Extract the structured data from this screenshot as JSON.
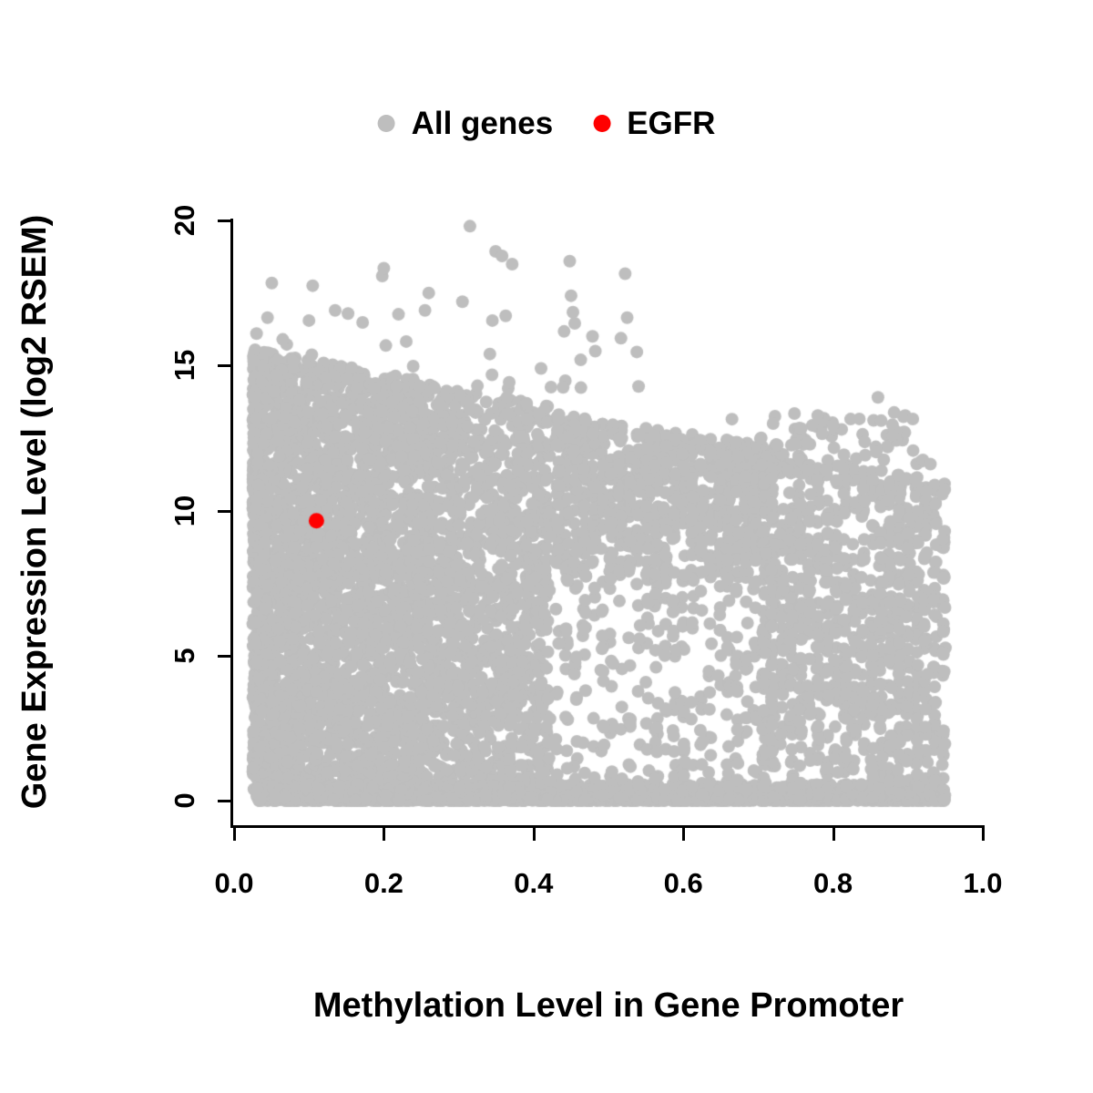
{
  "figure": {
    "background": "#ffffff"
  },
  "legend": {
    "position": "top-center",
    "items": [
      {
        "label": "All genes",
        "color": "#bebebe"
      },
      {
        "label": "EGFR",
        "color": "#ff0000"
      }
    ]
  },
  "axes": {
    "x": {
      "label": "Methylation Level in Gene Promoter",
      "tick_labels": [
        "0.0",
        "0.2",
        "0.4",
        "0.6",
        "0.8",
        "1.0"
      ],
      "tick_values": [
        0,
        0.2,
        0.4,
        0.6,
        0.8,
        1.0
      ],
      "range": [
        0,
        1
      ]
    },
    "y": {
      "label": "Gene Expression Level (log2 RSEM)",
      "tick_labels": [
        "0",
        "5",
        "10",
        "15",
        "20"
      ],
      "tick_values": [
        0,
        5,
        10,
        15,
        20
      ],
      "range": [
        0,
        20
      ]
    }
  },
  "chart_data": {
    "type": "scatter",
    "title": "",
    "xlabel": "Methylation Level in Gene Promoter",
    "ylabel": "Gene Expression Level (log2 RSEM)",
    "xlim": [
      0,
      1
    ],
    "ylim": [
      0,
      20
    ],
    "x_ticks": [
      0,
      0.2,
      0.4,
      0.6,
      0.8,
      1.0
    ],
    "y_ticks": [
      0,
      5,
      10,
      15,
      20
    ],
    "grid": false,
    "legend_position": "top-center",
    "series": [
      {
        "name": "All genes",
        "color": "#bebebe",
        "marker": "filled-circle",
        "marker_radius_px": 7,
        "n_points_estimated": 9000,
        "distribution_note": "Very dense solid cloud at methylation 0.02-0.42 spanning expression 0-15.5; sparser streaky cloud at methylation 0.42-0.95 with maximum expression declining from ~13 to ~11; dense baseline of points at expression ~0 across full methylation range; scattered high-expression outliers up to ~19.8 at low methylation.",
        "generator": {
          "seed": 42,
          "components": [
            {
              "name": "dense-low-methylation-block",
              "n": 3900,
              "x": {
                "min": 0.025,
                "max": 0.42,
                "pow": 1.35
              },
              "y": {
                "envelope_at_xmin": 15.6,
                "envelope_slope": -5.0,
                "pow": 1.0,
                "band_low": 0
              }
            },
            {
              "name": "baseline-near-zero",
              "n": 1600,
              "x": {
                "min": 0.03,
                "max": 0.95,
                "pow": 1.05
              },
              "y": {
                "min": 0,
                "max": 0.55,
                "pow": 2.4
              }
            },
            {
              "name": "mid-methylation-top-band",
              "n": 750,
              "x": {
                "min": 0.42,
                "max": 0.72,
                "pow": 1.0,
                "quantize": 0.012
              },
              "y": {
                "envelope_at_xmin": 13.4,
                "envelope_slope": -4.0,
                "pow": 0.8,
                "band_low": 0.58
              }
            },
            {
              "name": "mid-methylation-sparse-fill",
              "n": 480,
              "x": {
                "min": 0.42,
                "max": 0.72,
                "pow": 1.0,
                "quantize": 0.012
              },
              "y": {
                "envelope_at_xmin": 13.0,
                "envelope_slope": -4.0,
                "pow": 1.15,
                "band_low": 0
              }
            },
            {
              "name": "high-methylation-cloud",
              "n": 1050,
              "x": {
                "min": 0.7,
                "max": 0.95,
                "pow": 0.95,
                "quantize": 0.012
              },
              "y": {
                "envelope_at_xmin": 12.2,
                "envelope_slope": -5.0,
                "pow": 0.9,
                "band_low": 0
              }
            },
            {
              "name": "right-upper-sparse",
              "n": 70,
              "x": {
                "min": 0.7,
                "max": 0.92,
                "pow": 1.0
              },
              "y": {
                "min": 11.3,
                "max": 13.4,
                "pow": 1.0
              }
            },
            {
              "name": "upper-outliers",
              "n": 45,
              "x": {
                "min": 0.04,
                "max": 0.55,
                "pow": 1.0
              },
              "y": {
                "min": 14.2,
                "max": 19.5,
                "pow": 2.2
              }
            }
          ]
        },
        "notable_points": [
          [
            0.315,
            19.8
          ],
          [
            0.2,
            18.35
          ],
          [
            0.105,
            17.75
          ],
          [
            0.26,
            17.5
          ],
          [
            0.305,
            17.2
          ],
          [
            0.135,
            16.9
          ],
          [
            0.1,
            16.55
          ],
          [
            0.345,
            16.55
          ],
          [
            0.255,
            16.9
          ],
          [
            0.455,
            16.45
          ],
          [
            0.525,
            16.65
          ],
          [
            0.03,
            16.1
          ],
          [
            0.065,
            15.9
          ],
          [
            0.41,
            14.9
          ],
          [
            0.86,
            13.9
          ],
          [
            0.665,
            13.15
          ],
          [
            0.72,
            13.0
          ],
          [
            0.8,
            12.95
          ],
          [
            0.88,
            12.6
          ],
          [
            0.93,
            11.6
          ]
        ]
      },
      {
        "name": "EGFR",
        "color": "#ff0000",
        "marker": "filled-circle",
        "marker_radius_px": 8.5,
        "points": [
          [
            0.11,
            9.65
          ]
        ]
      }
    ]
  }
}
